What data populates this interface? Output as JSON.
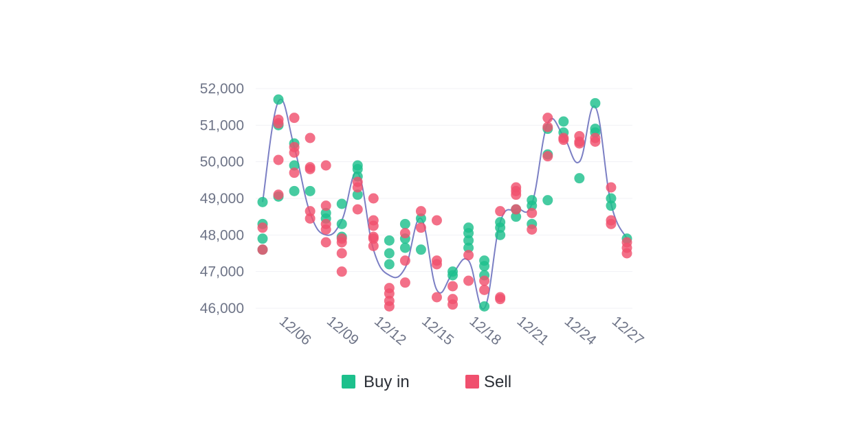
{
  "chart_data": {
    "type": "scatter",
    "title": "",
    "xlabel": "",
    "ylabel": "",
    "x_tick_labels": [
      "12/06",
      "12/09",
      "12/12",
      "12/15",
      "12/18",
      "12/21",
      "12/24",
      "12/27"
    ],
    "y_tick_labels": [
      "52,000",
      "51,000",
      "50,000",
      "49,000",
      "48,000",
      "47,000",
      "46,000"
    ],
    "ylim": [
      46000,
      52000
    ],
    "x_start": "12/05",
    "x_end": "12/28",
    "grid": true,
    "legend_position": "bottom",
    "colors": {
      "buy": "#1dc08c",
      "sell": "#f0506e",
      "line": "#7b7fc4",
      "axis_text": "#6e7487"
    },
    "series": [
      {
        "name": "Buy in",
        "color": "#1dc08c",
        "points": [
          [
            "12/05",
            48900
          ],
          [
            "12/05",
            48300
          ],
          [
            "12/05",
            47900
          ],
          [
            "12/05",
            47600
          ],
          [
            "12/06",
            51700
          ],
          [
            "12/06",
            51000
          ],
          [
            "12/06",
            49050
          ],
          [
            "12/07",
            50500
          ],
          [
            "12/07",
            49900
          ],
          [
            "12/07",
            49200
          ],
          [
            "12/08",
            49200
          ],
          [
            "12/09",
            48600
          ],
          [
            "12/09",
            48450
          ],
          [
            "12/10",
            48850
          ],
          [
            "12/10",
            48300
          ],
          [
            "12/10",
            47950
          ],
          [
            "12/11",
            49900
          ],
          [
            "12/11",
            49800
          ],
          [
            "12/11",
            49600
          ],
          [
            "12/11",
            49100
          ],
          [
            "12/13",
            47850
          ],
          [
            "12/13",
            47500
          ],
          [
            "12/13",
            47200
          ],
          [
            "12/14",
            48300
          ],
          [
            "12/14",
            47900
          ],
          [
            "12/14",
            47650
          ],
          [
            "12/15",
            48450
          ],
          [
            "12/15",
            47600
          ],
          [
            "12/17",
            47000
          ],
          [
            "12/17",
            46900
          ],
          [
            "12/18",
            48200
          ],
          [
            "12/18",
            48050
          ],
          [
            "12/18",
            47850
          ],
          [
            "12/18",
            47650
          ],
          [
            "12/19",
            47300
          ],
          [
            "12/19",
            47150
          ],
          [
            "12/19",
            46900
          ],
          [
            "12/19",
            46050
          ],
          [
            "12/20",
            48350
          ],
          [
            "12/20",
            48200
          ],
          [
            "12/20",
            48000
          ],
          [
            "12/21",
            48500
          ],
          [
            "12/21",
            48700
          ],
          [
            "12/22",
            48950
          ],
          [
            "12/22",
            48800
          ],
          [
            "12/22",
            48300
          ],
          [
            "12/23",
            50900
          ],
          [
            "12/23",
            50200
          ],
          [
            "12/23",
            48950
          ],
          [
            "12/24",
            51100
          ],
          [
            "12/24",
            50800
          ],
          [
            "12/25",
            49550
          ],
          [
            "12/26",
            51600
          ],
          [
            "12/26",
            50900
          ],
          [
            "12/26",
            50800
          ],
          [
            "12/27",
            49000
          ],
          [
            "12/27",
            48800
          ],
          [
            "12/28",
            47900
          ]
        ]
      },
      {
        "name": "Sell",
        "color": "#f0506e",
        "points": [
          [
            "12/05",
            48200
          ],
          [
            "12/05",
            47600
          ],
          [
            "12/06",
            51150
          ],
          [
            "12/06",
            51050
          ],
          [
            "12/06",
            50050
          ],
          [
            "12/06",
            49100
          ],
          [
            "12/07",
            51200
          ],
          [
            "12/07",
            50400
          ],
          [
            "12/07",
            50250
          ],
          [
            "12/07",
            49700
          ],
          [
            "12/08",
            50650
          ],
          [
            "12/08",
            49850
          ],
          [
            "12/08",
            49800
          ],
          [
            "12/08",
            48650
          ],
          [
            "12/08",
            48450
          ],
          [
            "12/09",
            49900
          ],
          [
            "12/09",
            48800
          ],
          [
            "12/09",
            48300
          ],
          [
            "12/09",
            48150
          ],
          [
            "12/09",
            47800
          ],
          [
            "12/10",
            47900
          ],
          [
            "12/10",
            47800
          ],
          [
            "12/10",
            47500
          ],
          [
            "12/10",
            47000
          ],
          [
            "12/11",
            49450
          ],
          [
            "12/11",
            49300
          ],
          [
            "12/11",
            48700
          ],
          [
            "12/12",
            49000
          ],
          [
            "12/12",
            48400
          ],
          [
            "12/12",
            48250
          ],
          [
            "12/12",
            47950
          ],
          [
            "12/12",
            47900
          ],
          [
            "12/12",
            47700
          ],
          [
            "12/13",
            46550
          ],
          [
            "12/13",
            46400
          ],
          [
            "12/13",
            46200
          ],
          [
            "12/13",
            46050
          ],
          [
            "12/14",
            48050
          ],
          [
            "12/14",
            47300
          ],
          [
            "12/14",
            46700
          ],
          [
            "12/15",
            48650
          ],
          [
            "12/15",
            48200
          ],
          [
            "12/16",
            48400
          ],
          [
            "12/16",
            47300
          ],
          [
            "12/16",
            47200
          ],
          [
            "12/16",
            46300
          ],
          [
            "12/17",
            46600
          ],
          [
            "12/17",
            46250
          ],
          [
            "12/17",
            46100
          ],
          [
            "12/18",
            47450
          ],
          [
            "12/18",
            46750
          ],
          [
            "12/19",
            46750
          ],
          [
            "12/19",
            46500
          ],
          [
            "12/20",
            48650
          ],
          [
            "12/20",
            46300
          ],
          [
            "12/20",
            46250
          ],
          [
            "12/21",
            49300
          ],
          [
            "12/21",
            49200
          ],
          [
            "12/21",
            49100
          ],
          [
            "12/21",
            48700
          ],
          [
            "12/22",
            48600
          ],
          [
            "12/22",
            48150
          ],
          [
            "12/23",
            51200
          ],
          [
            "12/23",
            50950
          ],
          [
            "12/23",
            50150
          ],
          [
            "12/24",
            50650
          ],
          [
            "12/24",
            50600
          ],
          [
            "12/25",
            50700
          ],
          [
            "12/25",
            50550
          ],
          [
            "12/25",
            50500
          ],
          [
            "12/26",
            50650
          ],
          [
            "12/26",
            50550
          ],
          [
            "12/27",
            49300
          ],
          [
            "12/27",
            48400
          ],
          [
            "12/27",
            48300
          ],
          [
            "12/28",
            47800
          ],
          [
            "12/28",
            47650
          ],
          [
            "12/28",
            47500
          ]
        ]
      }
    ],
    "trend_line": [
      [
        "12/05",
        48900
      ],
      [
        "12/06",
        51650
      ],
      [
        "12/07",
        50400
      ],
      [
        "12/08",
        48600
      ],
      [
        "12/09",
        48000
      ],
      [
        "12/10",
        48400
      ],
      [
        "12/11",
        49700
      ],
      [
        "12/12",
        47600
      ],
      [
        "12/13",
        46900
      ],
      [
        "12/14",
        47100
      ],
      [
        "12/15",
        48450
      ],
      [
        "12/16",
        46500
      ],
      [
        "12/17",
        46950
      ],
      [
        "12/18",
        47300
      ],
      [
        "12/19",
        46000
      ],
      [
        "12/20",
        48350
      ],
      [
        "12/21",
        48700
      ],
      [
        "12/22",
        48850
      ],
      [
        "12/23",
        51050
      ],
      [
        "12/24",
        50700
      ],
      [
        "12/25",
        50000
      ],
      [
        "12/26",
        51500
      ],
      [
        "12/27",
        48850
      ],
      [
        "12/28",
        47900
      ]
    ],
    "legend": [
      {
        "label": "Buy in",
        "color": "#1dc08c"
      },
      {
        "label": "Sell",
        "color": "#f0506e"
      }
    ]
  }
}
